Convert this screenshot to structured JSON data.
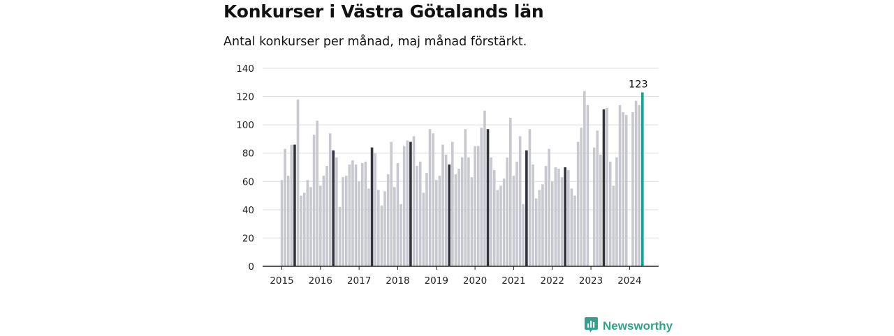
{
  "title": "Konkurser i Västra Götalands län",
  "subtitle": "Antal konkurser per månad, maj månad förstärkt.",
  "brand": {
    "name": "Newsworthy",
    "icon": "bar-chart-speech-bubble-icon"
  },
  "colors": {
    "bar": "#c8c8d0",
    "highlight": "#32323c",
    "latest": "#12a592",
    "axis": "#222222",
    "grid": "#dcdcdc",
    "brand": "#35a18c"
  },
  "chart_data": {
    "type": "bar",
    "start": "2015-01",
    "highlight_month": "May",
    "y_ticks": [
      0,
      20,
      40,
      60,
      80,
      100,
      120,
      140
    ],
    "ylim": [
      0,
      140
    ],
    "x_ticks": [
      "2015",
      "2016",
      "2017",
      "2018",
      "2019",
      "2020",
      "2021",
      "2022",
      "2023",
      "2024"
    ],
    "grid": "horizontal",
    "annotations": [
      {
        "month": "2024-05",
        "label": "123"
      }
    ],
    "values": [
      61,
      83,
      64,
      86,
      86,
      118,
      50,
      52,
      61,
      56,
      93,
      103,
      57,
      64,
      71,
      94,
      82,
      77,
      42,
      63,
      64,
      72,
      75,
      72,
      60,
      73,
      74,
      55,
      84,
      80,
      54,
      43,
      53,
      65,
      88,
      56,
      73,
      44,
      85,
      89,
      88,
      92,
      71,
      74,
      52,
      66,
      97,
      94,
      61,
      64,
      86,
      79,
      72,
      88,
      65,
      69,
      77,
      97,
      77,
      63,
      85,
      85,
      98,
      110,
      97,
      77,
      68,
      54,
      57,
      62,
      77,
      105,
      64,
      74,
      92,
      44,
      82,
      97,
      72,
      48,
      54,
      58,
      71,
      83,
      60,
      70,
      69,
      63,
      70,
      68,
      55,
      50,
      88,
      98,
      124,
      114,
      0,
      84,
      96,
      79,
      111,
      112,
      74,
      57,
      77,
      114,
      109,
      107,
      0,
      109,
      117,
      114,
      123
    ]
  }
}
